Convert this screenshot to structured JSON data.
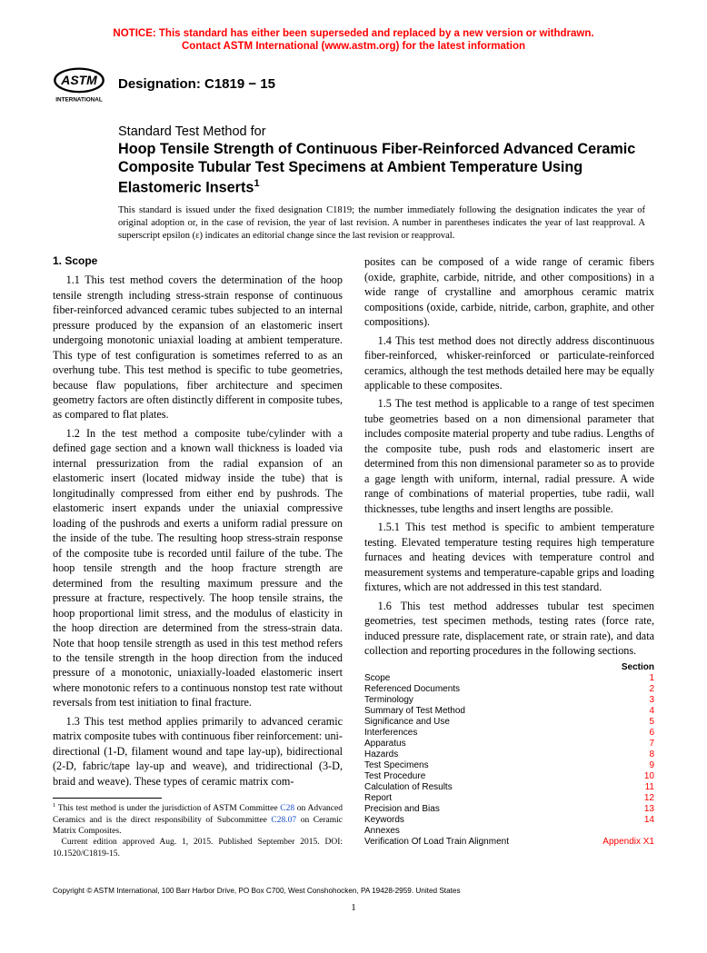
{
  "notice": {
    "line1": "NOTICE: This standard has either been superseded and replaced by a new version or withdrawn.",
    "line2": "Contact ASTM International (www.astm.org) for the latest information"
  },
  "logo": {
    "text_top": "ASTM",
    "text_bottom": "INTERNATIONAL"
  },
  "designation": "Designation: C1819 − 15",
  "title": {
    "label": "Standard Test Method for",
    "main": "Hoop Tensile Strength of Continuous Fiber-Reinforced Advanced Ceramic Composite Tubular Test Specimens at Ambient Temperature Using Elastomeric Inserts",
    "sup": "1"
  },
  "issuance_note": "This standard is issued under the fixed designation C1819; the number immediately following the designation indicates the year of original adoption or, in the case of revision, the year of last revision. A number in parentheses indicates the year of last reapproval. A superscript epsilon (ε) indicates an editorial change since the last revision or reapproval.",
  "scope_head": "1. Scope",
  "paras": {
    "p11": "1.1 This test method covers the determination of the hoop tensile strength including stress-strain response of continuous fiber-reinforced advanced ceramic tubes subjected to an internal pressure produced by the expansion of an elastomeric insert undergoing monotonic uniaxial loading at ambient temperature. This type of test configuration is sometimes referred to as an overhung tube. This test method is specific to tube geometries, because flaw populations, fiber architecture and specimen geometry factors are often distinctly different in composite tubes, as compared to flat plates.",
    "p12": "1.2 In the test method a composite tube/cylinder with a defined gage section and a known wall thickness is loaded via internal pressurization from the radial expansion of an elastomeric insert (located midway inside the tube) that is longitudinally compressed from either end by pushrods. The elastomeric insert expands under the uniaxial compressive loading of the pushrods and exerts a uniform radial pressure on the inside of the tube. The resulting hoop stress-strain response of the composite tube is recorded until failure of the tube. The hoop tensile strength and the hoop fracture strength are determined from the resulting maximum pressure and the pressure at fracture, respectively. The hoop tensile strains, the hoop proportional limit stress, and the modulus of elasticity in the hoop direction are determined from the stress-strain data. Note that hoop tensile strength as used in this test method refers to the tensile strength in the hoop direction from the induced pressure of a monotonic, uniaxially-loaded elastomeric insert where monotonic refers to a continuous nonstop test rate without reversals from test initiation to final fracture.",
    "p13a": "1.3 This test method applies primarily to advanced ceramic matrix composite tubes with continuous fiber reinforcement: uni-directional (1-D, filament wound and tape lay-up), bidirectional (2-D, fabric/tape lay-up and weave), and tridirectional (3-D, braid and weave). These types of ceramic matrix com-",
    "p13b": "posites can be composed of a wide range of ceramic fibers (oxide, graphite, carbide, nitride, and other compositions) in a wide range of crystalline and amorphous ceramic matrix compositions (oxide, carbide, nitride, carbon, graphite, and other compositions).",
    "p14": "1.4 This test method does not directly address discontinuous fiber-reinforced, whisker-reinforced or particulate-reinforced ceramics, although the test methods detailed here may be equally applicable to these composites.",
    "p15": "1.5 The test method is applicable to a range of test specimen tube geometries based on a non dimensional parameter that includes composite material property and tube radius. Lengths of the composite tube, push rods and elastomeric insert are determined from this non dimensional parameter so as to provide a gage length with uniform, internal, radial pressure. A wide range of combinations of material properties, tube radii, wall thicknesses, tube lengths and insert lengths are possible.",
    "p151": "1.5.1 This test method is specific to ambient temperature testing. Elevated temperature testing requires high temperature furnaces and heating devices with temperature control and measurement systems and temperature-capable grips and loading fixtures, which are not addressed in this test standard.",
    "p16": "1.6 This test method addresses tubular test specimen geometries, test specimen methods, testing rates (force rate, induced pressure rate, displacement rate, or strain rate), and data collection and reporting procedures in the following sections."
  },
  "toc": {
    "head": "Section",
    "rows": [
      {
        "title": "Scope",
        "sec": "1"
      },
      {
        "title": "Referenced Documents",
        "sec": "2"
      },
      {
        "title": "Terminology",
        "sec": "3"
      },
      {
        "title": "Summary of Test Method",
        "sec": "4"
      },
      {
        "title": "Significance and Use",
        "sec": "5"
      },
      {
        "title": "Interferences",
        "sec": "6"
      },
      {
        "title": "Apparatus",
        "sec": "7"
      },
      {
        "title": "Hazards",
        "sec": "8"
      },
      {
        "title": "Test Specimens",
        "sec": "9"
      },
      {
        "title": "Test Procedure",
        "sec": "10"
      },
      {
        "title": "Calculation of Results",
        "sec": "11"
      },
      {
        "title": "Report",
        "sec": "12"
      },
      {
        "title": "Precision and Bias",
        "sec": "13"
      },
      {
        "title": "Keywords",
        "sec": "14"
      },
      {
        "title": "Annexes",
        "sec": ""
      },
      {
        "title": "Verification Of Load Train Alignment",
        "sec": "Appendix X1"
      }
    ]
  },
  "footnote": {
    "sup": "1",
    "text_a": " This test method is under the jurisdiction of ASTM Committee ",
    "link1": "C28",
    "text_b": " on Advanced Ceramics and is the direct responsibility of Subcommittee ",
    "link2": "C28.07",
    "text_c": " on Ceramic Matrix Composites.",
    "line2": "Current edition approved Aug. 1, 2015. Published September 2015. DOI: 10.1520/C1819-15."
  },
  "copyright": "Copyright © ASTM International, 100 Barr Harbor Drive, PO Box C700, West Conshohocken, PA 19428-2959. United States",
  "pagenum": "1"
}
